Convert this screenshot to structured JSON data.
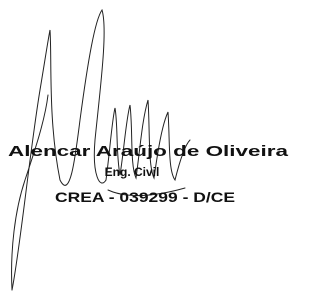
{
  "signature": {
    "name": "Alencar Araújo de Oliveira",
    "title": "Eng. Civil",
    "registration": "CREA - 039299 - D/CE"
  }
}
